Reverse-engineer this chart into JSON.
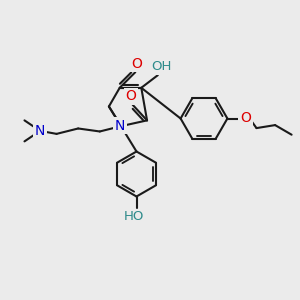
{
  "background_color": "#ebebeb",
  "bond_color": "#1a1a1a",
  "bond_width": 1.5,
  "atom_colors": {
    "O": "#dd0000",
    "N": "#0000cc",
    "H_label": "#2e8b8b"
  },
  "font_size_atom": 9.5
}
